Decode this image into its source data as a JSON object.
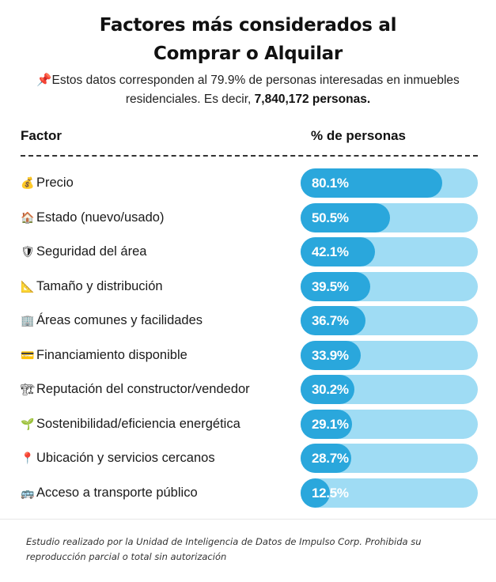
{
  "title": {
    "line1": "Factores más considerados al",
    "line2": "Comprar o Alquilar"
  },
  "note": {
    "part1": "Estos datos corresponden al 79.9% de personas interesadas en inmuebles residenciales. Es decir, ",
    "highlight": "7,840,172 personas.",
    "icon": "pushpin-icon"
  },
  "header": {
    "factor": "Factor",
    "percent": "% de personas"
  },
  "colors": {
    "fill": "#2aa7dc",
    "track": "#9fdcf4"
  },
  "chart_data": {
    "type": "bar",
    "orientation": "horizontal",
    "xlim": [
      0,
      100
    ],
    "categories": [
      "Precio",
      "Estado (nuevo/usado)",
      "Seguridad del área",
      "Tamaño y distribución",
      "Áreas comunes y facilidades",
      "Financiamiento disponible",
      "Reputación del constructor/vendedor",
      "Sostenibilidad/eficiencia energética",
      "Ubicación y servicios cercanos",
      "Acceso a transporte público"
    ],
    "icons": [
      "money-bag-icon",
      "house-icon",
      "shield-icon",
      "triangle-ruler-icon",
      "office-building-icon",
      "credit-card-icon",
      "construction-crane-icon",
      "seedling-icon",
      "map-pin-icon",
      "bus-icon"
    ],
    "values": [
      80.1,
      50.5,
      42.1,
      39.5,
      36.7,
      33.9,
      30.2,
      29.1,
      28.7,
      12.5
    ],
    "value_labels": [
      "80.1%",
      "50.5%",
      "42.1%",
      "39.5%",
      "36.7%",
      "33.9%",
      "30.2%",
      "29.1%",
      "28.7%",
      "12.5%"
    ]
  },
  "source": "Estudio realizado por la Unidad de Inteligencia de Datos de Impulso Corp. Prohibida su reproducción parcial o total sin autorización"
}
